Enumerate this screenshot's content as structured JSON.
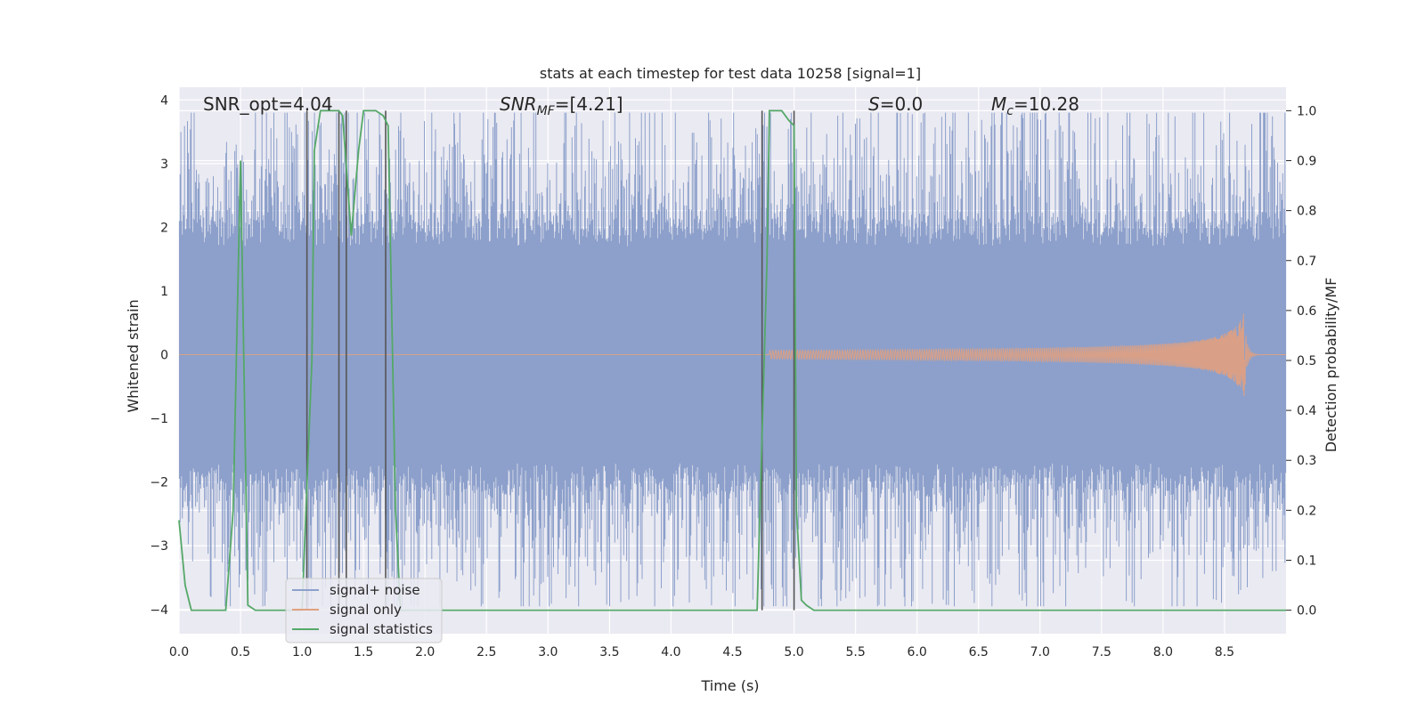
{
  "chart_data": {
    "type": "line",
    "title": "stats at each timestep for test data 10258 [signal=1]",
    "xlabel": "Time (s)",
    "ylabel_left": "Whitened strain",
    "ylabel_right": "Detection probability/MF",
    "xlim": [
      0.0,
      9.0
    ],
    "ylim_left": [
      -4.38,
      4.2
    ],
    "ylim_right": [
      -0.047,
      1.047
    ],
    "x_ticks": [
      "0.0",
      "0.5",
      "1.0",
      "1.5",
      "2.0",
      "2.5",
      "3.0",
      "3.5",
      "4.0",
      "4.5",
      "5.0",
      "5.5",
      "6.0",
      "6.5",
      "7.0",
      "7.5",
      "8.0",
      "8.5"
    ],
    "y_ticks_left": [
      "4",
      "3",
      "2",
      "1",
      "0",
      "−1",
      "−2",
      "−3",
      "−4"
    ],
    "y_ticks_right": [
      "1.0",
      "0.9",
      "0.8",
      "0.7",
      "0.6",
      "0.5",
      "0.4",
      "0.3",
      "0.2",
      "0.1",
      "0.0"
    ],
    "grid": true,
    "legend_placement": "lower-left",
    "annotations": {
      "snr_opt": "SNR_opt=4.04",
      "snr_mf": "SNR_MF=[4.21]",
      "s_val": "S=0.0",
      "mc_val": "M_c=10.28"
    },
    "series": [
      {
        "name": "signal+ noise",
        "color": "#8da0cb",
        "kind": "noise-band",
        "envelope_core": [
          -1.7,
          1.7
        ],
        "typical_peak": 2.6,
        "max_peak": 3.8
      },
      {
        "name": "signal only",
        "color": "#e1a080",
        "kind": "chirp",
        "start_x": 4.8,
        "merger_x": 8.66,
        "peak_amplitude": 0.68
      },
      {
        "name": "signal statistics",
        "color": "#55a868",
        "kind": "probability",
        "x": [
          0.0,
          0.05,
          0.1,
          0.2,
          0.38,
          0.44,
          0.5,
          0.56,
          0.62,
          0.7,
          1.0,
          1.08,
          1.1,
          1.15,
          1.3,
          1.33,
          1.4,
          1.46,
          1.5,
          1.55,
          1.6,
          1.66,
          1.7,
          1.76,
          1.8,
          1.9,
          4.7,
          4.78,
          4.8,
          4.9,
          4.96,
          5.0,
          5.02,
          5.06,
          5.1,
          5.16,
          9.0
        ],
        "y": [
          0.18,
          0.05,
          0.0,
          0.0,
          0.0,
          0.2,
          0.9,
          0.01,
          0.0,
          0.0,
          0.0,
          0.5,
          0.92,
          1.0,
          1.0,
          0.99,
          0.75,
          0.92,
          1.0,
          1.0,
          1.0,
          0.99,
          0.97,
          0.2,
          0.0,
          0.0,
          0.0,
          0.7,
          1.0,
          1.0,
          0.98,
          0.97,
          0.2,
          0.02,
          0.01,
          0.0,
          0.0
        ]
      }
    ],
    "vertical_lines_x": [
      1.04,
      1.3,
      1.36,
      1.68,
      4.74,
      5.0
    ]
  }
}
